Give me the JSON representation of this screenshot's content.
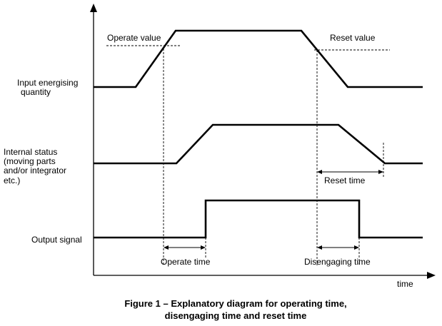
{
  "labels": {
    "operate_value": "Operate value",
    "reset_value": "Reset value",
    "input_line1": "Input energising",
    "input_line2": "quantity",
    "internal_line1": "Internal status",
    "internal_line2": "(moving parts",
    "internal_line3": "and/or integrator",
    "internal_line4": "etc.)",
    "reset_time": "Reset time",
    "output_signal": "Output signal",
    "operate_time": "Operate time",
    "disengaging_time": "Disengaging time",
    "time_axis": "time"
  },
  "caption": {
    "line1": "Figure 1 – Explanatory diagram for operating time,",
    "line2": "disengaging time and reset time"
  }
}
